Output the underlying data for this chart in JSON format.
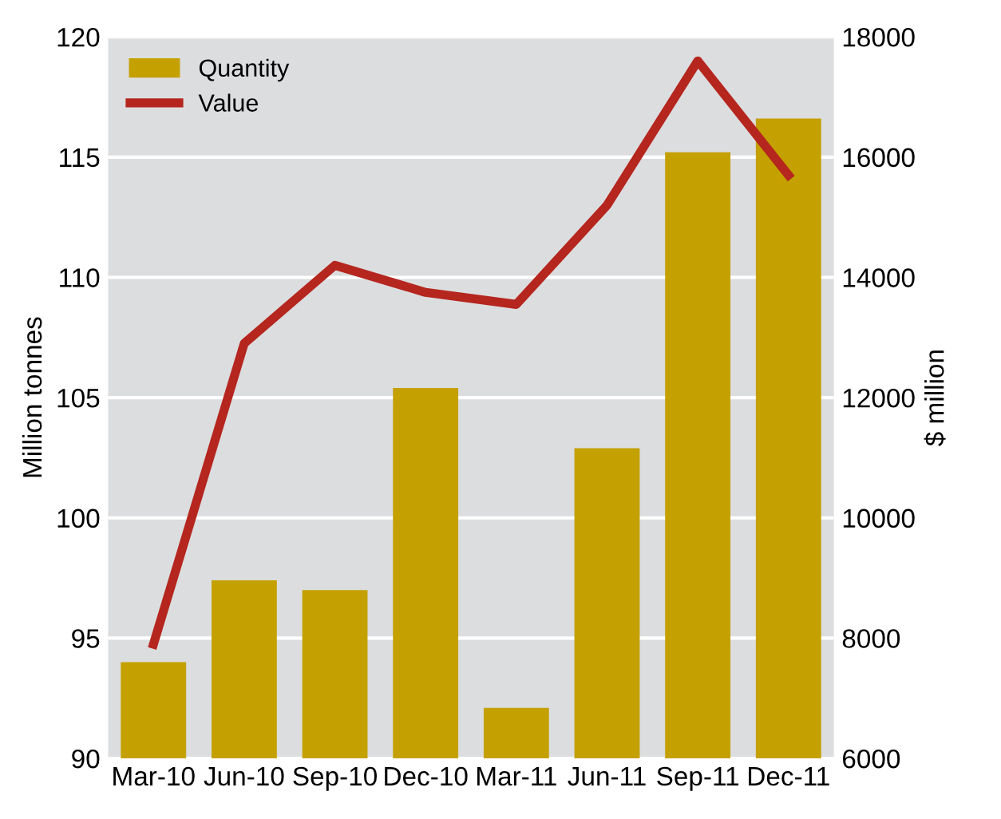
{
  "chart_data": {
    "type": "bar",
    "categories": [
      "Mar-10",
      "Jun-10",
      "Sep-10",
      "Dec-10",
      "Mar-11",
      "Jun-11",
      "Sep-11",
      "Dec-11"
    ],
    "series": [
      {
        "name": "Quantity",
        "color": "#c4a000",
        "values": [
          94.0,
          97.4,
          97.0,
          105.4,
          92.1,
          102.9,
          115.2,
          116.6
        ]
      },
      {
        "name": "Value",
        "type": "line",
        "axis": "y2",
        "color": "#b5261e",
        "line_style": "solid",
        "values": [
          7900,
          12900,
          14200,
          13750,
          13550,
          15200,
          17600,
          15700
        ]
      }
    ],
    "ylabel": "Million tonnes",
    "y2label": "$ million",
    "ylim": [
      90,
      120
    ],
    "yticks": [
      90,
      95,
      100,
      105,
      110,
      115,
      120
    ],
    "y2lim": [
      6000,
      18000
    ],
    "y2ticks": [
      6000,
      8000,
      10000,
      12000,
      14000,
      16000,
      18000
    ],
    "grid": "y",
    "legend": "top left"
  }
}
